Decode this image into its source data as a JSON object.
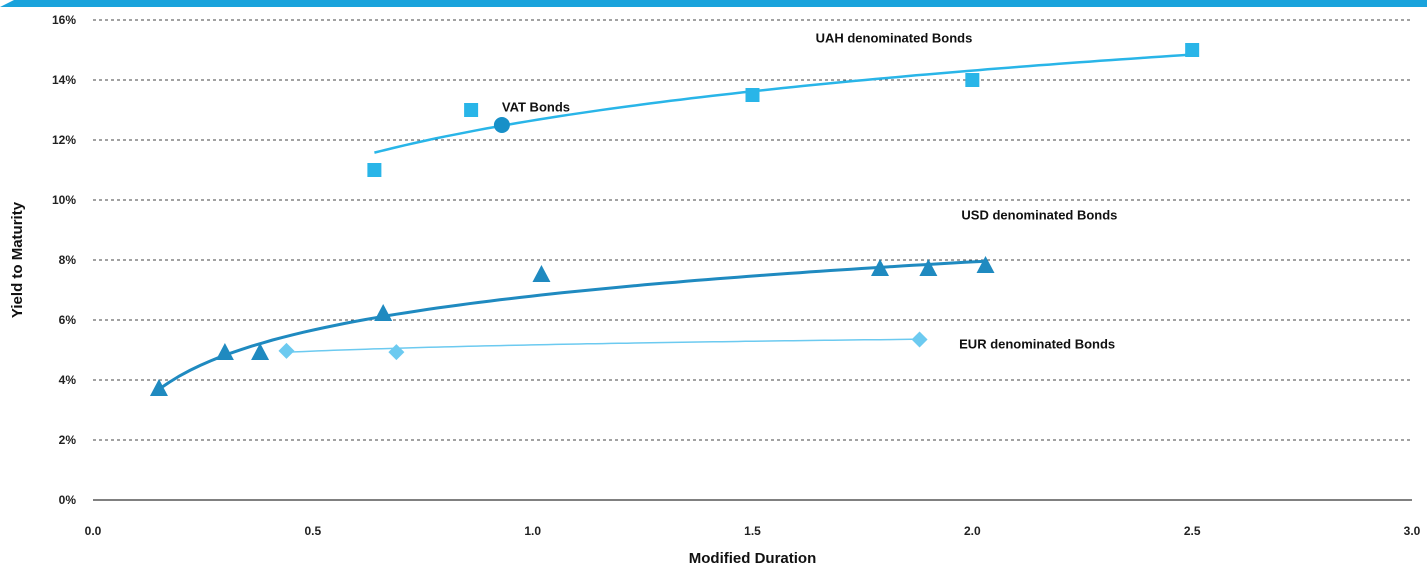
{
  "chart_data": {
    "type": "scatter",
    "xlabel": "Modified Duration",
    "ylabel": "Yield to Maturity",
    "xlim": [
      0,
      3
    ],
    "ylim": [
      0,
      16
    ],
    "x_ticks": [
      0,
      0.5,
      1,
      1.5,
      2,
      2.5,
      3
    ],
    "x_tick_labels": [
      "0.0",
      "0.5",
      "1.0",
      "1.5",
      "2.0",
      "2.5",
      "3.0"
    ],
    "y_ticks": [
      0,
      2,
      4,
      6,
      8,
      10,
      12,
      14,
      16
    ],
    "y_tick_labels": [
      "0%",
      "2%",
      "4%",
      "6%",
      "8%",
      "10%",
      "12%",
      "14%",
      "16%"
    ],
    "grid": "horizontal dashed",
    "series": [
      {
        "name": "UAH denominated Bonds",
        "marker": "square",
        "color": "#29b5e8",
        "points": [
          [
            0.64,
            11.0
          ],
          [
            0.86,
            13.0
          ],
          [
            1.5,
            13.5
          ],
          [
            2.0,
            14.0
          ],
          [
            2.5,
            15.0
          ]
        ],
        "trend": {
          "type": "log",
          "a": 12.65,
          "b": 2.4,
          "x_range": [
            0.64,
            2.5
          ]
        }
      },
      {
        "name": "VAT Bonds",
        "marker": "circle",
        "color": "#1890c8",
        "points": [
          [
            0.93,
            12.5
          ]
        ]
      },
      {
        "name": "USD denominated Bonds",
        "marker": "triangle",
        "color": "#1f8ac0",
        "points": [
          [
            0.15,
            3.7
          ],
          [
            0.3,
            4.9
          ],
          [
            0.38,
            4.9
          ],
          [
            0.66,
            6.2
          ],
          [
            1.02,
            7.5
          ],
          [
            1.79,
            7.7
          ],
          [
            1.9,
            7.7
          ],
          [
            2.03,
            7.8
          ]
        ]
      },
      {
        "name": "EUR denominated Bonds",
        "marker": "diamond",
        "color": "#6ccaf0",
        "points": [
          [
            0.44,
            4.97
          ],
          [
            0.69,
            4.93
          ],
          [
            1.88,
            5.35
          ]
        ],
        "trend": {
          "type": "log",
          "a": 5.17,
          "b": 0.3,
          "x_range": [
            0.44,
            1.88
          ]
        }
      }
    ],
    "usd_trend": {
      "type": "log",
      "a": 6.8,
      "b": 1.64,
      "x_range": [
        0.15,
        2.03
      ]
    }
  }
}
